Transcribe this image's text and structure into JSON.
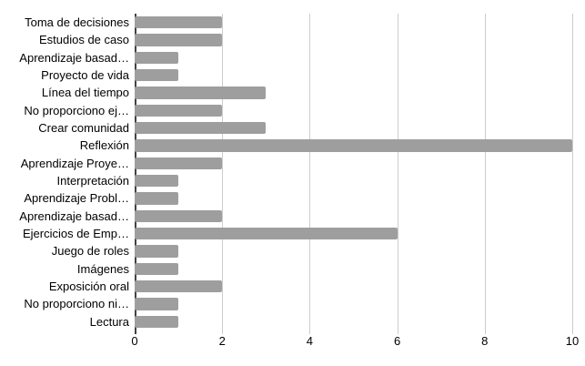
{
  "chart_data": {
    "type": "bar",
    "orientation": "horizontal",
    "title": "",
    "categories": [
      "Toma de decisiones",
      "Estudios de caso",
      "Aprendizaje basad…",
      "Proyecto de vida",
      "Línea del tiempo",
      "No proporciono ej…",
      "Crear comunidad",
      "Reflexión",
      "Aprendizaje Proye…",
      "Interpretación",
      "Aprendizaje Probl…",
      "Aprendizaje basad…",
      "Ejercicios de Emp…",
      "Juego de roles",
      "Imágenes",
      "Exposición oral",
      "No proporciono ni…",
      "Lectura"
    ],
    "values": [
      2,
      2,
      1,
      1,
      3,
      2,
      3,
      10,
      2,
      1,
      1,
      2,
      6,
      1,
      1,
      2,
      1,
      1
    ],
    "x_ticks": [
      0,
      2,
      4,
      6,
      8,
      10
    ],
    "xlim": [
      0,
      10
    ],
    "xlabel": "",
    "ylabel": "",
    "grid": true,
    "legend": "none",
    "colors": {
      "bar": "#9e9e9e",
      "gridline": "#cccccc",
      "axis": "#424242",
      "label_text": "#000000",
      "background": "#ffffff"
    }
  }
}
